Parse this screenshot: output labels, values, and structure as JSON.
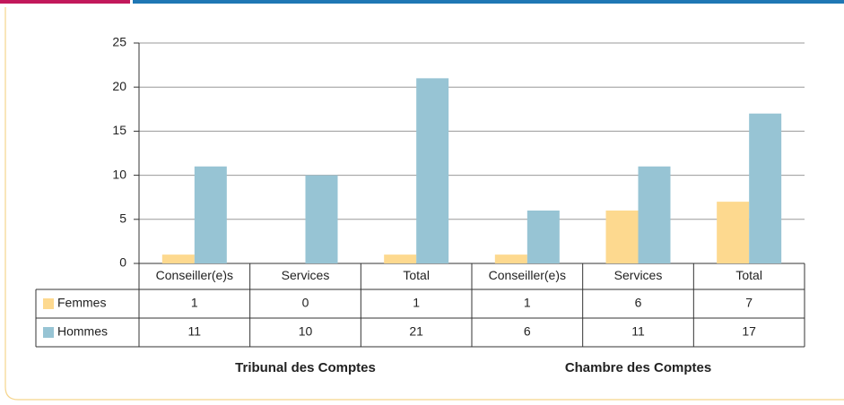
{
  "chart_data": {
    "type": "bar",
    "categories": [
      "Conseiller(e)s",
      "Services",
      "Total",
      "Conseiller(e)s",
      "Services",
      "Total"
    ],
    "groups": [
      "Tribunal des Comptes",
      "Chambre des Comptes"
    ],
    "series": [
      {
        "name": "Femmes",
        "color": "#fdd98f",
        "values": [
          1,
          0,
          1,
          1,
          6,
          7
        ]
      },
      {
        "name": "Hommes",
        "color": "#97c4d4",
        "values": [
          11,
          10,
          21,
          6,
          11,
          17
        ]
      }
    ],
    "ylim": [
      0,
      25
    ],
    "yticks": [
      0,
      5,
      10,
      15,
      20,
      25
    ],
    "grid": true
  }
}
